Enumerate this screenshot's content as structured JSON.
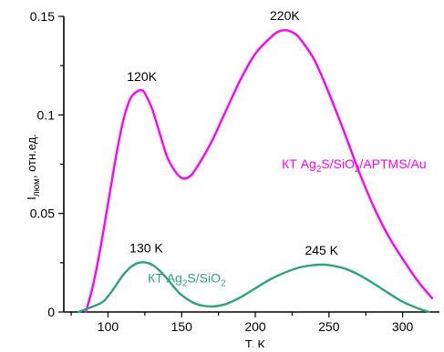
{
  "chart_data": {
    "type": "line",
    "xlabel": "T, K",
    "ylabel": {
      "main": "I",
      "sub": "люм",
      "rest": ", отн.ед."
    },
    "xlim": [
      70,
      325
    ],
    "ylim": [
      0,
      0.15
    ],
    "x_ticks": [
      100,
      150,
      200,
      250,
      300
    ],
    "y_ticks": [
      {
        "value": 0,
        "label": "0"
      },
      {
        "value": 0.05,
        "label": "0.05"
      },
      {
        "value": 0.1,
        "label": "0.1"
      },
      {
        "value": 0.15,
        "label": "0.15"
      }
    ],
    "grid": false,
    "series": [
      {
        "label_parts": [
          {
            "t": "КТ Ag"
          },
          {
            "t": "2",
            "sub": true
          },
          {
            "t": "S/SiO"
          },
          {
            "t": "2",
            "sub": true
          },
          {
            "t": "/APTMS/Au"
          }
        ],
        "label_at": {
          "x": 218,
          "y": 0.073
        },
        "color": "#ff00ff",
        "points": [
          [
            85,
            0.0
          ],
          [
            90,
            0.014
          ],
          [
            95,
            0.033
          ],
          [
            100,
            0.055
          ],
          [
            105,
            0.077
          ],
          [
            110,
            0.096
          ],
          [
            115,
            0.108
          ],
          [
            120,
            0.112
          ],
          [
            123,
            0.1125
          ],
          [
            125,
            0.111
          ],
          [
            130,
            0.103
          ],
          [
            135,
            0.091
          ],
          [
            140,
            0.079
          ],
          [
            145,
            0.072
          ],
          [
            150,
            0.068
          ],
          [
            155,
            0.0685
          ],
          [
            160,
            0.073
          ],
          [
            170,
            0.086
          ],
          [
            180,
            0.102
          ],
          [
            190,
            0.118
          ],
          [
            200,
            0.131
          ],
          [
            210,
            0.139
          ],
          [
            215,
            0.142
          ],
          [
            220,
            0.143
          ],
          [
            225,
            0.142
          ],
          [
            230,
            0.139
          ],
          [
            240,
            0.128
          ],
          [
            250,
            0.111
          ],
          [
            260,
            0.092
          ],
          [
            270,
            0.072
          ],
          [
            280,
            0.054
          ],
          [
            290,
            0.039
          ],
          [
            300,
            0.027
          ],
          [
            310,
            0.016
          ],
          [
            320,
            0.007
          ]
        ]
      },
      {
        "label_parts": [
          {
            "t": "КТ Ag"
          },
          {
            "t": "2",
            "sub": true
          },
          {
            "t": "S/SiO"
          },
          {
            "t": "2",
            "sub": true
          }
        ],
        "label_at": {
          "x": 127,
          "y": 0.015
        },
        "color": "#2aa57a",
        "points": [
          [
            80,
            0.0
          ],
          [
            95,
            0.0045
          ],
          [
            100,
            0.008
          ],
          [
            105,
            0.013
          ],
          [
            110,
            0.0185
          ],
          [
            115,
            0.0225
          ],
          [
            120,
            0.0248
          ],
          [
            125,
            0.0252
          ],
          [
            130,
            0.024
          ],
          [
            135,
            0.021
          ],
          [
            140,
            0.017
          ],
          [
            145,
            0.0125
          ],
          [
            150,
            0.0085
          ],
          [
            160,
            0.004
          ],
          [
            170,
            0.0028
          ],
          [
            180,
            0.004
          ],
          [
            190,
            0.0075
          ],
          [
            200,
            0.012
          ],
          [
            210,
            0.0165
          ],
          [
            220,
            0.02
          ],
          [
            230,
            0.0226
          ],
          [
            240,
            0.0238
          ],
          [
            245,
            0.024
          ],
          [
            250,
            0.0238
          ],
          [
            260,
            0.0222
          ],
          [
            270,
            0.019
          ],
          [
            280,
            0.0146
          ],
          [
            290,
            0.0098
          ],
          [
            300,
            0.0052
          ],
          [
            310,
            0.002
          ],
          [
            318,
            0.0
          ]
        ]
      }
    ],
    "annotations": [
      {
        "text": "120K",
        "x": 123,
        "y": 0.1135
      },
      {
        "text": "220K",
        "x": 220,
        "y": 0.1445
      },
      {
        "text": "130 K",
        "x": 126,
        "y": 0.0265
      },
      {
        "text": "245 K",
        "x": 245,
        "y": 0.0255
      }
    ]
  }
}
